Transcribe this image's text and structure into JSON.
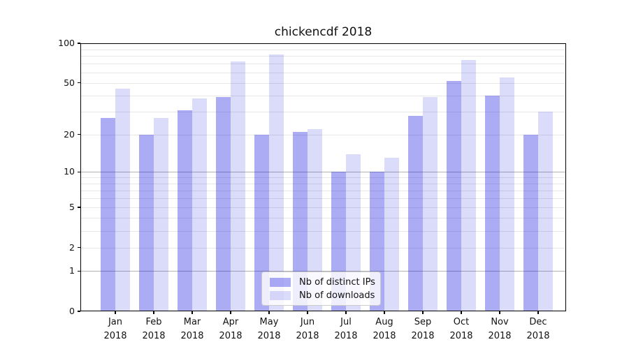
{
  "title": "chickencdf 2018",
  "colors": {
    "bar_distinct_ips": "rgba(16,16,224,0.35)",
    "bar_downloads": "rgba(16,16,224,0.15)",
    "bar_distinct_ips_hex": "#abab3f4_over_white_#ababf4",
    "major_gridline": "#b3b3b3",
    "minor_gridline": "#e7e7e7",
    "axis": "#000000"
  },
  "legend": {
    "items": [
      "Nb of distinct IPs",
      "Nb of downloads"
    ]
  },
  "chart_data": {
    "type": "bar",
    "title": "chickencdf 2018",
    "categories": [
      "Jan",
      "Feb",
      "Mar",
      "Apr",
      "May",
      "Jun",
      "Jul",
      "Aug",
      "Sep",
      "Oct",
      "Nov",
      "Dec"
    ],
    "year": "2018",
    "series": [
      {
        "name": "Nb of distinct IPs",
        "values": [
          27,
          20,
          31,
          39,
          20,
          21,
          10,
          10,
          28,
          52,
          40,
          20
        ]
      },
      {
        "name": "Nb of downloads",
        "values": [
          45,
          27,
          38,
          73,
          82,
          22,
          14,
          13,
          39,
          75,
          55,
          30
        ]
      }
    ],
    "xlabel": "",
    "ylabel": "",
    "yscale": "log1p",
    "y_ticks": [
      0,
      1,
      2,
      5,
      10,
      20,
      50,
      100
    ],
    "y_minor_ticks": [
      2,
      3,
      4,
      5,
      6,
      7,
      8,
      9,
      20,
      30,
      40,
      50,
      60,
      70,
      80,
      90
    ],
    "ylim": [
      0,
      100
    ],
    "grid": "horizontal",
    "legend_position": "lower center"
  }
}
